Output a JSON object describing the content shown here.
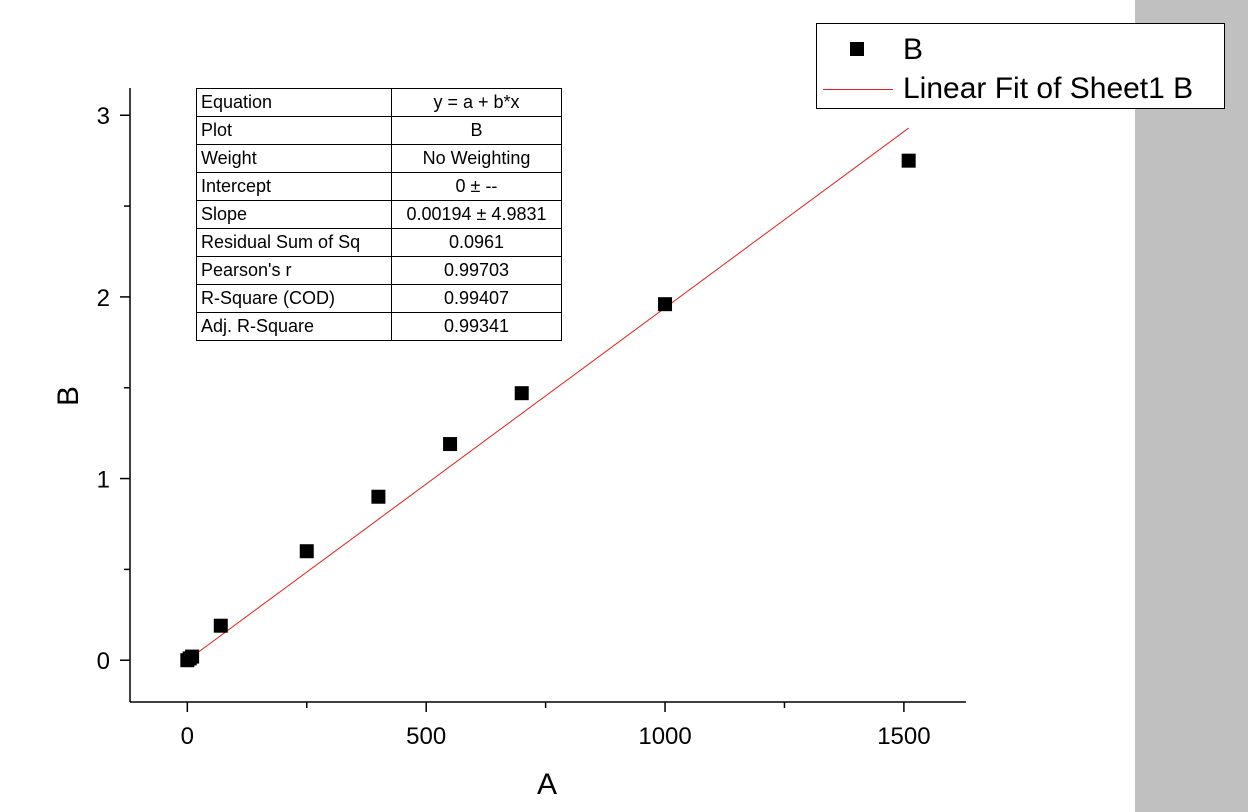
{
  "chart_data": {
    "type": "scatter",
    "xlabel": "A",
    "ylabel": "B",
    "xlim": [
      -120,
      1630
    ],
    "ylim": [
      -0.23,
      3.15
    ],
    "x_ticks": [
      0,
      500,
      1000,
      1500
    ],
    "y_ticks": [
      0,
      1,
      2,
      3
    ],
    "grid": false,
    "legend_position": "top-right",
    "colors": {
      "points": "#000000",
      "fit_line": "#e02020",
      "gutter": "#c0c0c0"
    },
    "series": [
      {
        "name": "B",
        "kind": "scatter",
        "x": [
          0,
          5,
          10,
          70,
          250,
          400,
          550,
          700,
          1000,
          1510
        ],
        "y": [
          0.0,
          0.01,
          0.02,
          0.19,
          0.6,
          0.9,
          1.19,
          1.47,
          1.96,
          2.75
        ]
      },
      {
        "name": "Linear Fit of Sheet1 B",
        "kind": "line",
        "intercept": 0,
        "slope": 0.00194,
        "x_range": [
          0,
          1510
        ]
      }
    ],
    "stats_table": [
      {
        "label": "Equation",
        "value": "y = a + b*x"
      },
      {
        "label": "Plot",
        "value": "B"
      },
      {
        "label": "Weight",
        "value": "No Weighting"
      },
      {
        "label": "Intercept",
        "value": "0 ± --"
      },
      {
        "label": "Slope",
        "value": "0.00194 ± 4.9831"
      },
      {
        "label": "Residual Sum of Sq",
        "value": "0.0961"
      },
      {
        "label": "Pearson's r",
        "value": "0.99703"
      },
      {
        "label": "R-Square (COD)",
        "value": "0.99407"
      },
      {
        "label": "Adj. R-Square",
        "value": "0.99341"
      }
    ]
  }
}
